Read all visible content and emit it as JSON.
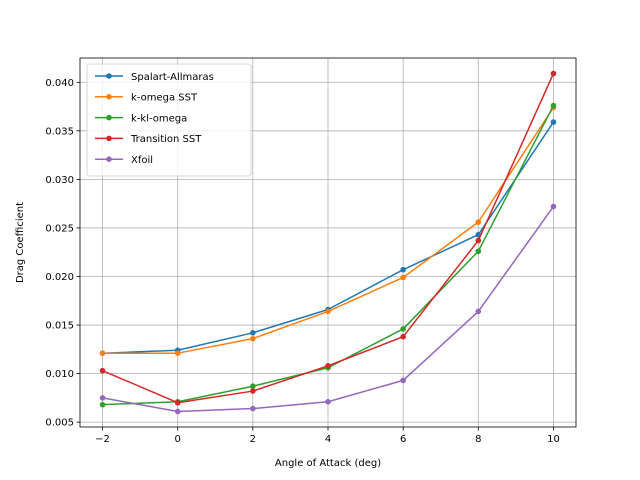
{
  "chart_data": {
    "type": "line",
    "title": "",
    "xlabel": "Angle of Attack (deg)",
    "ylabel": "Drag Coefficient",
    "xlim": [
      -2.6,
      10.6
    ],
    "ylim": [
      0.0045,
      0.0425
    ],
    "xticks": [
      -2,
      0,
      2,
      4,
      6,
      8,
      10
    ],
    "xtick_labels": [
      "−2",
      "0",
      "2",
      "4",
      "6",
      "8",
      "10"
    ],
    "yticks": [
      0.005,
      0.01,
      0.015,
      0.02,
      0.025,
      0.03,
      0.035,
      0.04
    ],
    "ytick_labels": [
      "0.005",
      "0.010",
      "0.015",
      "0.020",
      "0.025",
      "0.030",
      "0.035",
      "0.040"
    ],
    "grid": true,
    "legend_position": "top-left",
    "x": [
      -2,
      0,
      2,
      4,
      6,
      8,
      10
    ],
    "series": [
      {
        "name": "Spalart-Allmaras",
        "color": "#1f77b4",
        "values": [
          0.0121,
          0.0124,
          0.0142,
          0.0166,
          0.0207,
          0.0243,
          0.0359
        ]
      },
      {
        "name": "k-omega SST",
        "color": "#ff7f0e",
        "values": [
          0.0121,
          0.0121,
          0.0136,
          0.0164,
          0.0199,
          0.0256,
          0.0374
        ]
      },
      {
        "name": "k-kl-omega",
        "color": "#2ca02c",
        "values": [
          0.0068,
          0.0071,
          0.0087,
          0.0106,
          0.0146,
          0.0226,
          0.0376
        ]
      },
      {
        "name": "Transition SST",
        "color": "#d62728",
        "values": [
          0.0103,
          0.007,
          0.0082,
          0.0108,
          0.0138,
          0.0237,
          0.0409
        ]
      },
      {
        "name": "Xfoil",
        "color": "#9467bd",
        "values": [
          0.0075,
          0.0061,
          0.0064,
          0.0071,
          0.0093,
          0.0164,
          0.0272
        ]
      }
    ]
  }
}
